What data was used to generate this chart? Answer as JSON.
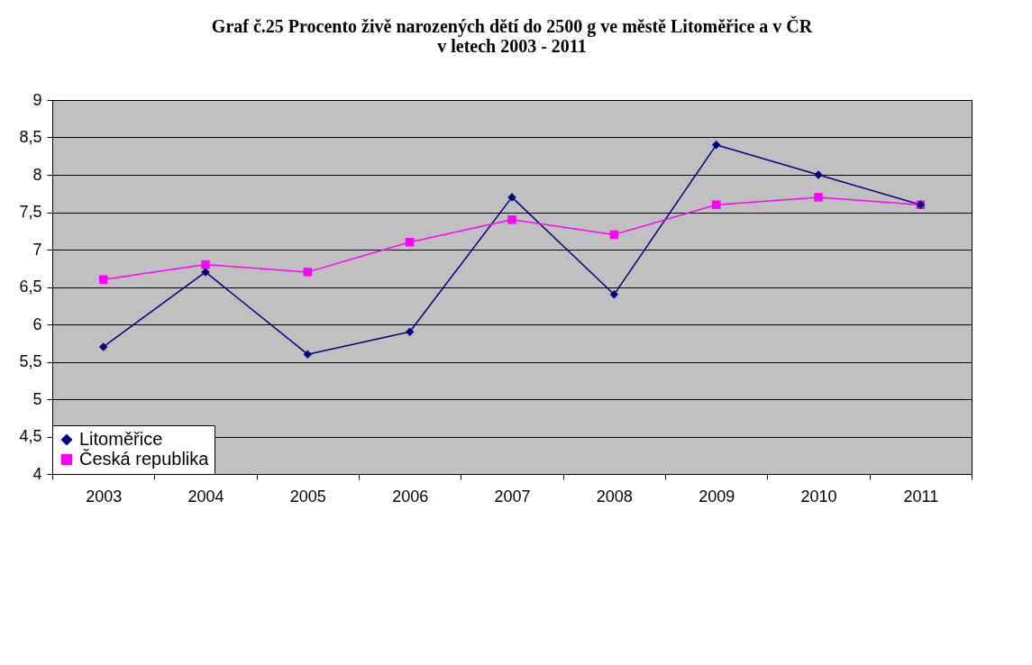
{
  "chart_data": {
    "type": "line",
    "title": "Graf č.25 Procento živě narozených dětí do 2500 g ve městě Litoměřice a v ČR\nv letech 2003 - 2011",
    "categories": [
      "2003",
      "2004",
      "2005",
      "2006",
      "2007",
      "2008",
      "2009",
      "2010",
      "2011"
    ],
    "series": [
      {
        "name": "Litoměřice",
        "color": "#000080",
        "marker": "diamond",
        "values": [
          5.7,
          6.7,
          5.6,
          5.9,
          7.7,
          6.4,
          8.4,
          8.0,
          7.6
        ]
      },
      {
        "name": "Česká republika",
        "color": "#ff00ff",
        "marker": "square",
        "values": [
          6.6,
          6.8,
          6.7,
          7.1,
          7.4,
          7.2,
          7.6,
          7.7,
          7.6
        ]
      }
    ],
    "ylim": [
      4,
      9
    ],
    "yticks": [
      4,
      {
        "value": 4.5,
        "label": "4,5"
      },
      5,
      {
        "value": 5.5,
        "label": "5,5"
      },
      6,
      {
        "value": 6.5,
        "label": "6,5"
      },
      7,
      {
        "value": 7.5,
        "label": "7,5"
      },
      8,
      {
        "value": 8.5,
        "label": "8,5"
      },
      9
    ],
    "grid": "y",
    "legend": "bottom left",
    "line_style": "solid"
  }
}
